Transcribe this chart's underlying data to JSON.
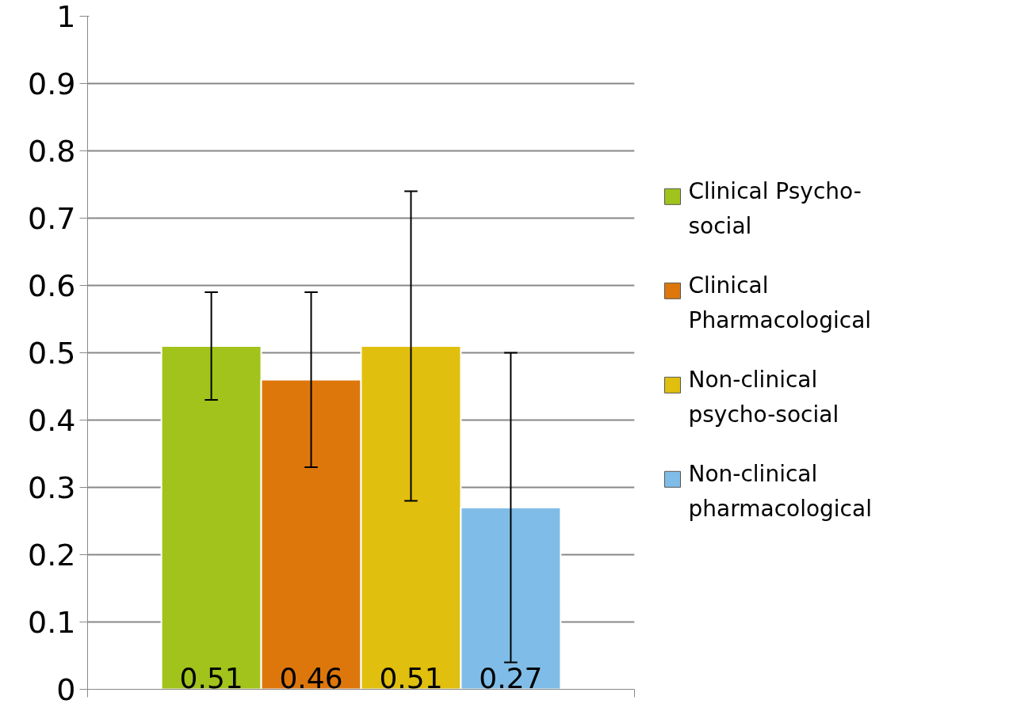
{
  "chart_data": {
    "type": "bar",
    "categories": [
      null
    ],
    "series": [
      {
        "name": "Clinical Psycho-social",
        "color": "#a2c31b",
        "values": [
          0.51
        ],
        "errors": [
          [
            0.43,
            0.59
          ]
        ]
      },
      {
        "name": "Clinical Pharmacological",
        "color": "#dd770c",
        "values": [
          0.46
        ],
        "errors": [
          [
            0.33,
            0.59
          ]
        ]
      },
      {
        "name": "Non-clinical psycho-social",
        "color": "#e0bf0e",
        "values": [
          0.51
        ],
        "errors": [
          [
            0.28,
            0.74
          ]
        ]
      },
      {
        "name": "Non-clinical pharmacological",
        "color": "#7fbde8",
        "values": [
          0.27
        ],
        "errors": [
          [
            0.04,
            0.5
          ]
        ]
      }
    ],
    "ylim": [
      0,
      1
    ],
    "yticks": [
      0,
      0.1,
      0.2,
      0.3,
      0.4,
      0.5,
      0.6,
      0.7,
      0.8,
      0.9,
      1
    ],
    "grid": "y",
    "legend": "right",
    "data_labels": true
  }
}
